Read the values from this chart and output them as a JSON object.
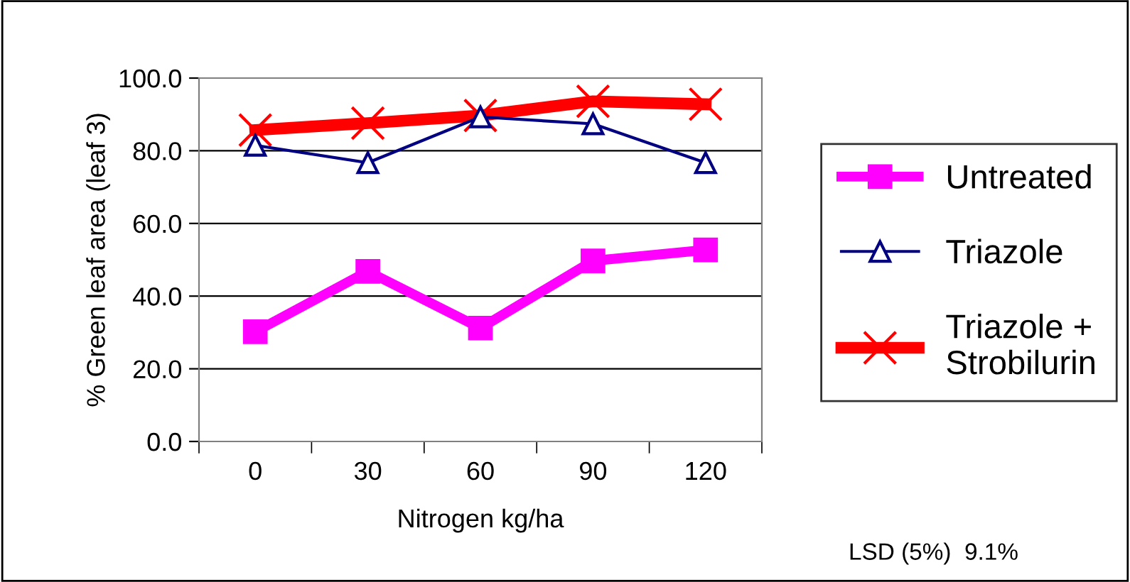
{
  "chart_data": {
    "type": "line",
    "xlabel": "Nitrogen kg/ha",
    "ylabel": "% Green leaf area (leaf 3)",
    "categories": [
      "0",
      "30",
      "60",
      "90",
      "120"
    ],
    "series": [
      {
        "name": "Untreated",
        "color": "#ff00ff",
        "values": [
          30.2,
          46.8,
          31.2,
          49.7,
          52.7
        ],
        "marker": "square"
      },
      {
        "name": "Triazole",
        "color": "#000080",
        "values": [
          81.5,
          76.7,
          89.3,
          87.4,
          76.7
        ],
        "marker": "triangle"
      },
      {
        "name": "Triazole +\nStrobilurin",
        "color": "#ff0000",
        "values": [
          85.7,
          87.6,
          89.7,
          93.6,
          92.8
        ],
        "marker": "cross"
      }
    ],
    "ylim": [
      0,
      100
    ],
    "yticks": [
      {
        "value": 0,
        "label": "0.0"
      },
      {
        "value": 20,
        "label": "20.0"
      },
      {
        "value": 40,
        "label": "40.0"
      },
      {
        "value": 60,
        "label": "60.0"
      },
      {
        "value": 80,
        "label": "80.0"
      },
      {
        "value": 100,
        "label": "100.0"
      }
    ],
    "grid": "y",
    "legend": "right",
    "line_style": "solid",
    "annotations": [
      "LSD (5%)  9.1%"
    ]
  }
}
